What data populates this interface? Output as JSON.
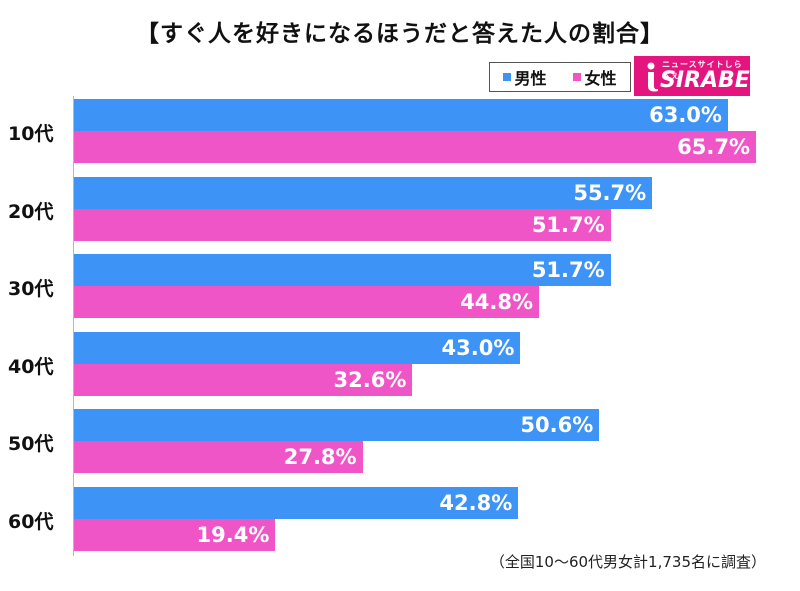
{
  "title": "【すぐ人を好きになるほうだと答えた人の割合】",
  "legend": [
    {
      "label": "男性",
      "color": "#3d94f6"
    },
    {
      "label": "女性",
      "color": "#f055c8"
    }
  ],
  "logo": {
    "tagline": "ニュースサイトしらべぇ",
    "wordmark": "SIRABEE",
    "color": "#e5157f"
  },
  "note": "（全国10～60代男女計1,735名に調査）",
  "chart_data": {
    "type": "bar",
    "orientation": "horizontal",
    "title": "【すぐ人を好きになるほうだと答えた人の割合】",
    "categories": [
      "10代",
      "20代",
      "30代",
      "40代",
      "50代",
      "60代"
    ],
    "series": [
      {
        "name": "男性",
        "color": "#3d94f6",
        "values": [
          63.0,
          55.7,
          51.7,
          43.0,
          50.6,
          42.8
        ],
        "labels": [
          "63.0%",
          "55.7%",
          "51.7%",
          "43.0%",
          "50.6%",
          "42.8%"
        ]
      },
      {
        "name": "女性",
        "color": "#f055c8",
        "values": [
          65.7,
          51.7,
          44.8,
          32.6,
          27.8,
          19.4
        ],
        "labels": [
          "65.7%",
          "51.7%",
          "44.8%",
          "32.6%",
          "27.8%",
          "19.4%"
        ]
      }
    ],
    "unit": "%",
    "xlim": [
      0,
      65.7
    ],
    "legend_position": "top-right",
    "grid": false
  }
}
